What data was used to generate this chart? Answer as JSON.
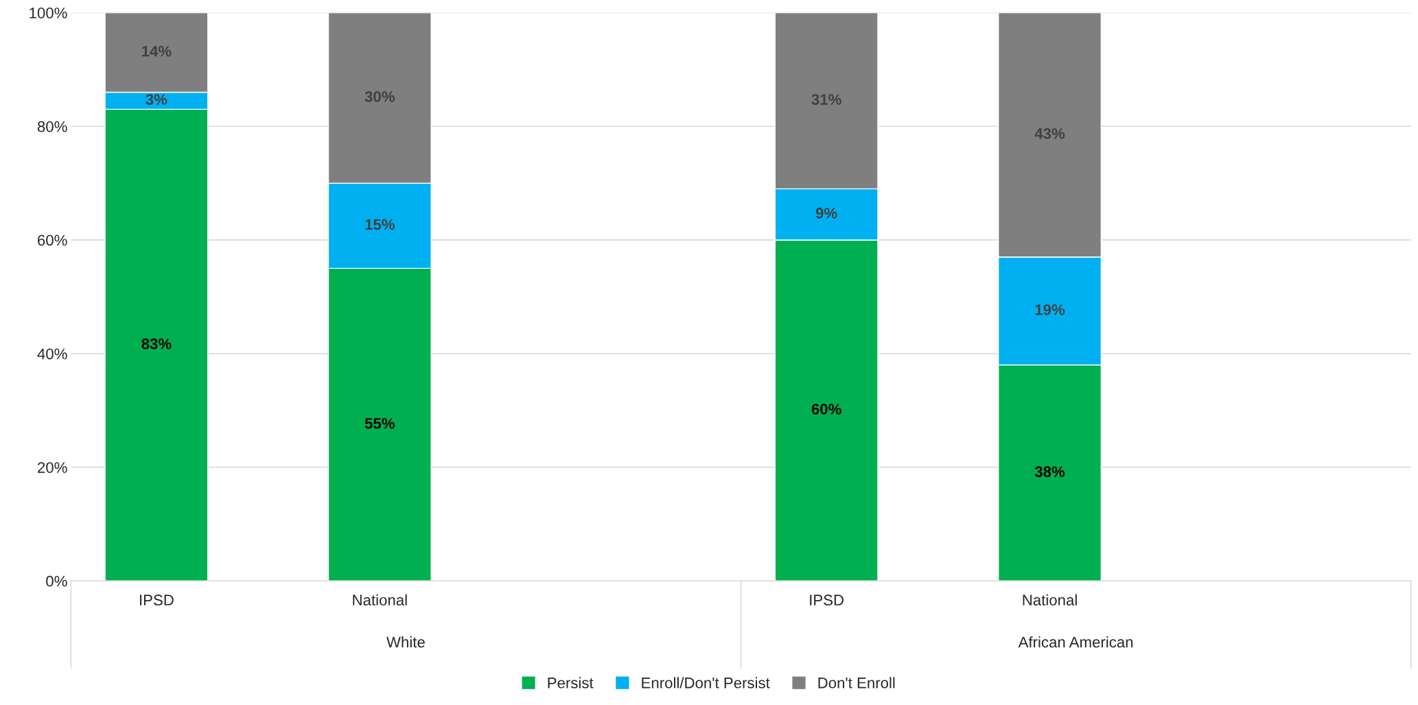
{
  "chart_data": {
    "type": "bar",
    "stacked": true,
    "categories": [
      "IPSD",
      "National",
      null,
      "IPSD",
      "National",
      null
    ],
    "series": [
      {
        "name": "Persist",
        "color": "#00b050",
        "values": [
          83,
          55,
          null,
          60,
          38,
          null
        ],
        "value_labels": [
          "83%",
          "55%",
          null,
          "60%",
          "38%",
          null
        ]
      },
      {
        "name": "Enroll/Don't Persist",
        "color": "#00b0f0",
        "values": [
          3,
          15,
          null,
          9,
          19,
          null
        ],
        "value_labels": [
          "3%",
          "15%",
          null,
          "9%",
          "19%",
          null
        ]
      },
      {
        "name": "Don't Enroll",
        "color": "#7f7f7f",
        "values": [
          14,
          30,
          null,
          31,
          43,
          null
        ],
        "value_labels": [
          "14%",
          "30%",
          null,
          "31%",
          "43%",
          null
        ]
      }
    ],
    "annotations": [
      "White",
      "African American"
    ],
    "ylim": [
      0,
      100
    ],
    "yticks": [
      {
        "value": 0,
        "label": "0%"
      },
      {
        "value": 20,
        "label": "20%"
      },
      {
        "value": 40,
        "label": "40%"
      },
      {
        "value": 60,
        "label": "60%"
      },
      {
        "value": 80,
        "label": "80%"
      },
      {
        "value": 100,
        "label": "100%"
      }
    ],
    "grid": "y",
    "legend": "bottom"
  }
}
